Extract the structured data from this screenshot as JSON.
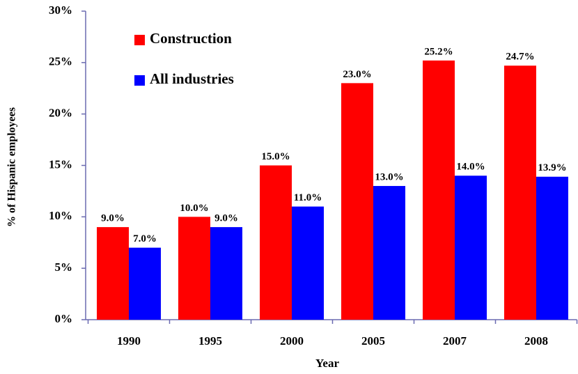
{
  "chart_data": {
    "type": "bar",
    "x_label": "Year",
    "y_label": "% of Hispanic employees",
    "categories": [
      "1990",
      "1995",
      "2000",
      "2005",
      "2007",
      "2008"
    ],
    "series": [
      {
        "name": "Construction",
        "color": "#ff0000",
        "values": [
          9.0,
          10.0,
          15.0,
          23.0,
          25.2,
          24.7
        ],
        "value_labels": [
          "9.0%",
          "10.0%",
          "15.0%",
          "23.0%",
          "25.2%",
          "24.7%"
        ]
      },
      {
        "name": "All industries",
        "color": "#0000ff",
        "values": [
          7.0,
          9.0,
          11.0,
          13.0,
          14.0,
          13.9
        ],
        "value_labels": [
          "7.0%",
          "9.0%",
          "11.0%",
          "13.0%",
          "14.0%",
          "13.9%"
        ]
      }
    ],
    "ylim": [
      0,
      30
    ],
    "yticks": [
      {
        "value": 0,
        "label": "0%"
      },
      {
        "value": 5,
        "label": "5%"
      },
      {
        "value": 10,
        "label": "10%"
      },
      {
        "value": 15,
        "label": "15%"
      },
      {
        "value": 20,
        "label": "20%"
      },
      {
        "value": 25,
        "label": "25%"
      },
      {
        "value": 30,
        "label": "30%"
      }
    ],
    "legend": "upper left"
  }
}
